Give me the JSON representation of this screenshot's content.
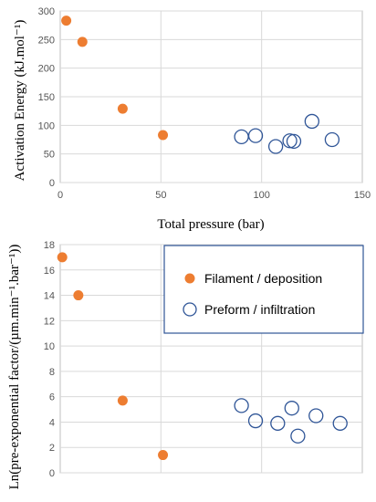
{
  "chart_data": [
    {
      "type": "scatter",
      "title": "",
      "xlabel": "Total pressure (bar)",
      "ylabel": "Activation Energy (kJ.mol⁻¹)",
      "xlim": [
        0,
        150
      ],
      "ylim": [
        0,
        300
      ],
      "xticks": [
        "0",
        "50",
        "100",
        "150"
      ],
      "yticks": [
        "0",
        "50",
        "100",
        "150",
        "200",
        "250",
        "300"
      ],
      "grid": true,
      "series": [
        {
          "name": "Filament / deposition",
          "marker": "filled-circle",
          "color": "#ed7d31",
          "points": [
            [
              3,
              283
            ],
            [
              11,
              246
            ],
            [
              31,
              129
            ],
            [
              51,
              83
            ]
          ]
        },
        {
          "name": "Preform / infiltration",
          "marker": "open-circle",
          "color": "#2f5597",
          "points": [
            [
              90,
              80
            ],
            [
              97,
              82
            ],
            [
              107,
              63
            ],
            [
              114,
              73
            ],
            [
              116,
              72
            ],
            [
              125,
              107
            ],
            [
              135,
              75
            ]
          ]
        }
      ]
    },
    {
      "type": "scatter",
      "title": "",
      "xlabel": "",
      "ylabel": "Ln(pre-exponential factor/(µm.min⁻¹.bar⁻¹))",
      "xlim": [
        0,
        150
      ],
      "ylim": [
        0,
        18
      ],
      "yticks": [
        "0",
        "2",
        "4",
        "6",
        "8",
        "10",
        "12",
        "14",
        "16",
        "18"
      ],
      "grid": true,
      "legend_position": "top-right",
      "legend": [
        "Filament / deposition",
        "Preform / infiltration"
      ],
      "series": [
        {
          "name": "Filament / deposition",
          "marker": "filled-circle",
          "color": "#ed7d31",
          "points": [
            [
              1,
              17
            ],
            [
              9,
              14
            ],
            [
              31,
              5.7
            ],
            [
              51,
              1.4
            ]
          ]
        },
        {
          "name": "Preform / infiltration",
          "marker": "open-circle",
          "color": "#2f5597",
          "points": [
            [
              90,
              5.3
            ],
            [
              97,
              4.1
            ],
            [
              108,
              3.9
            ],
            [
              115,
              5.1
            ],
            [
              118,
              2.9
            ],
            [
              127,
              4.5
            ],
            [
              139,
              3.9
            ]
          ]
        }
      ]
    }
  ]
}
